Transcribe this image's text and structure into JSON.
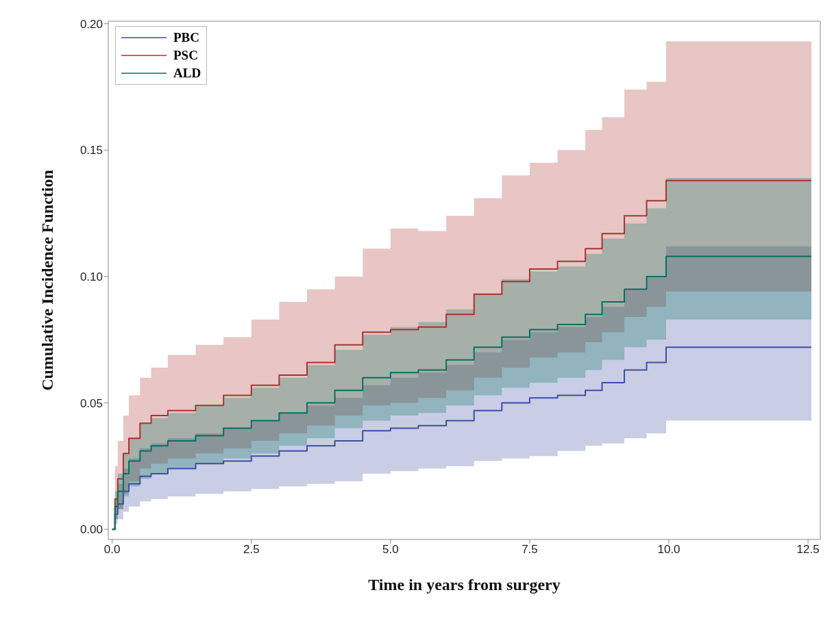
{
  "chart_data": {
    "type": "step",
    "xlabel": "Time in years from surgery",
    "ylabel": "Cumulative Incidence Function",
    "x": [
      0,
      0.05,
      0.1,
      0.2,
      0.3,
      0.5,
      0.7,
      1.0,
      1.5,
      2.0,
      2.5,
      3.0,
      3.5,
      4.0,
      4.5,
      5.0,
      5.5,
      6.0,
      6.5,
      7.0,
      7.5,
      8.0,
      8.5,
      8.8,
      9.2,
      9.6,
      9.95,
      12.56
    ],
    "series": [
      {
        "name": "PBC",
        "color": "#3d4ea0",
        "values": [
          0,
          0.006,
          0.01,
          0.015,
          0.018,
          0.021,
          0.022,
          0.024,
          0.026,
          0.027,
          0.029,
          0.031,
          0.033,
          0.035,
          0.039,
          0.04,
          0.041,
          0.043,
          0.047,
          0.05,
          0.052,
          0.053,
          0.055,
          0.058,
          0.063,
          0.066,
          0.072,
          0.072
        ],
        "lower": [
          0,
          0.002,
          0.004,
          0.007,
          0.009,
          0.011,
          0.012,
          0.013,
          0.014,
          0.015,
          0.016,
          0.017,
          0.018,
          0.019,
          0.022,
          0.023,
          0.024,
          0.025,
          0.027,
          0.028,
          0.029,
          0.031,
          0.033,
          0.034,
          0.036,
          0.038,
          0.043,
          0.043
        ],
        "upper": [
          0,
          0.012,
          0.018,
          0.024,
          0.028,
          0.032,
          0.034,
          0.036,
          0.038,
          0.04,
          0.043,
          0.046,
          0.049,
          0.052,
          0.057,
          0.06,
          0.062,
          0.065,
          0.07,
          0.075,
          0.078,
          0.08,
          0.084,
          0.088,
          0.095,
          0.1,
          0.112,
          0.112
        ]
      },
      {
        "name": "PSC",
        "color": "#a8332e",
        "values": [
          0,
          0.012,
          0.02,
          0.03,
          0.036,
          0.042,
          0.045,
          0.047,
          0.049,
          0.053,
          0.057,
          0.061,
          0.066,
          0.073,
          0.078,
          0.079,
          0.08,
          0.085,
          0.093,
          0.098,
          0.103,
          0.106,
          0.111,
          0.117,
          0.124,
          0.13,
          0.138,
          0.138
        ],
        "lower": [
          0,
          0.004,
          0.008,
          0.014,
          0.019,
          0.024,
          0.026,
          0.028,
          0.03,
          0.032,
          0.035,
          0.038,
          0.041,
          0.045,
          0.049,
          0.05,
          0.052,
          0.055,
          0.06,
          0.064,
          0.068,
          0.07,
          0.074,
          0.078,
          0.084,
          0.088,
          0.094,
          0.094
        ],
        "upper": [
          0,
          0.025,
          0.035,
          0.045,
          0.053,
          0.06,
          0.064,
          0.069,
          0.073,
          0.076,
          0.083,
          0.09,
          0.095,
          0.1,
          0.111,
          0.119,
          0.118,
          0.124,
          0.131,
          0.14,
          0.145,
          0.15,
          0.158,
          0.163,
          0.174,
          0.177,
          0.193,
          0.193
        ]
      },
      {
        "name": "ALD",
        "color": "#00735f",
        "values": [
          0,
          0.009,
          0.015,
          0.022,
          0.027,
          0.031,
          0.033,
          0.035,
          0.037,
          0.04,
          0.043,
          0.046,
          0.05,
          0.055,
          0.06,
          0.062,
          0.063,
          0.067,
          0.072,
          0.076,
          0.079,
          0.081,
          0.085,
          0.09,
          0.095,
          0.1,
          0.108,
          0.108
        ],
        "lower": [
          0,
          0.004,
          0.008,
          0.013,
          0.017,
          0.02,
          0.022,
          0.024,
          0.026,
          0.028,
          0.03,
          0.033,
          0.036,
          0.04,
          0.043,
          0.045,
          0.046,
          0.049,
          0.053,
          0.056,
          0.058,
          0.06,
          0.063,
          0.067,
          0.072,
          0.075,
          0.083,
          0.083
        ],
        "upper": [
          0,
          0.015,
          0.022,
          0.03,
          0.036,
          0.042,
          0.044,
          0.046,
          0.049,
          0.052,
          0.056,
          0.06,
          0.065,
          0.071,
          0.077,
          0.08,
          0.082,
          0.087,
          0.093,
          0.099,
          0.102,
          0.104,
          0.109,
          0.115,
          0.121,
          0.127,
          0.139,
          0.139
        ]
      }
    ],
    "xlim": [
      -0.07,
      12.72
    ],
    "xticks": [
      {
        "value": 0,
        "label": "0.0"
      },
      2.5,
      {
        "value": 5,
        "label": "5.0"
      },
      7.5,
      {
        "value": 10,
        "label": "10.0"
      },
      12.5
    ],
    "ylim": [
      -0.004,
      0.201
    ],
    "yticks": [
      {
        "value": 0,
        "label": "0.00"
      },
      0.05,
      {
        "value": 0.1,
        "label": "0.10"
      },
      0.15,
      {
        "value": 0.2,
        "label": "0.20"
      }
    ],
    "legend": "top left",
    "grid": false
  }
}
